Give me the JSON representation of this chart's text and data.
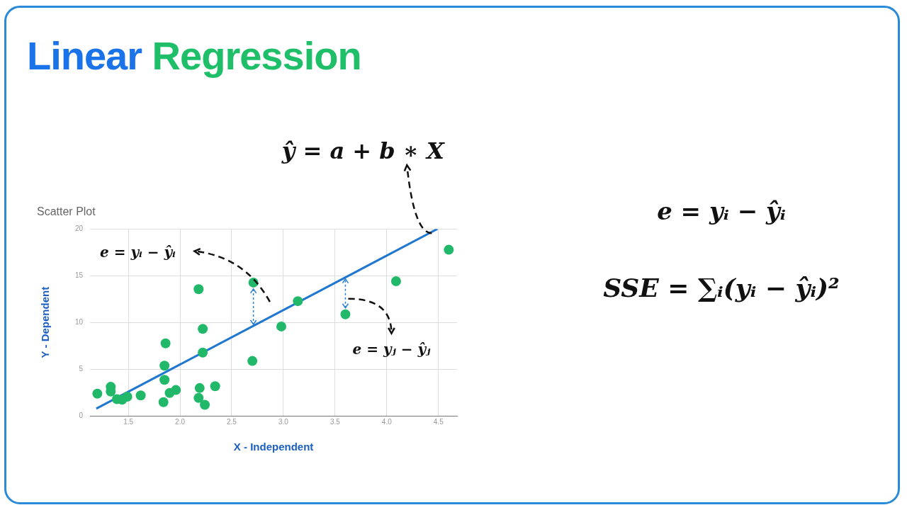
{
  "chart_data": {
    "type": "scatter",
    "title": "Linear Regression",
    "subtitle": "Scatter Plot",
    "xlabel": "X - Independent",
    "ylabel": "Y - Dependent",
    "xlim": [
      1.13,
      4.68
    ],
    "xticks": [
      {
        "value": 1.5,
        "label": "1.5"
      },
      {
        "value": 2,
        "label": "2.0"
      },
      {
        "value": 2.5,
        "label": "2.5"
      },
      {
        "value": 3,
        "label": "3.0"
      },
      {
        "value": 3.5,
        "label": "3.5"
      },
      {
        "value": 4,
        "label": "4.0"
      },
      {
        "value": 4.5,
        "label": "4.5"
      }
    ],
    "ylim": [
      0,
      20
    ],
    "yticks": [
      0,
      5,
      10,
      15,
      20
    ],
    "grid": true,
    "marker": "circle",
    "series": [
      {
        "color": "#21b869",
        "x": [
          1.2,
          1.33,
          1.33,
          1.39,
          1.44,
          1.49,
          1.62,
          1.84,
          1.85,
          1.85,
          1.86,
          1.9,
          1.96,
          2.18,
          2.19,
          2.18,
          2.24,
          2.22,
          2.22,
          2.34,
          2.71,
          2.7,
          2.98,
          3.14,
          3.6,
          4.09,
          4.6
        ],
        "values": [
          2.37,
          3.1,
          2.6,
          1.78,
          1.73,
          2.05,
          2.18,
          1.46,
          3.85,
          5.36,
          7.75,
          2.44,
          2.76,
          13.55,
          2.97,
          1.91,
          1.17,
          9.3,
          6.77,
          3.16,
          14.26,
          5.87,
          9.56,
          12.27,
          10.86,
          14.4,
          17.77
        ]
      },
      {
        "type": "line",
        "color": "#1f77d0",
        "marker": "none",
        "x": [
          1.19,
          4.49
        ],
        "values": [
          0.77,
          20
        ]
      }
    ],
    "annotations": [
      {
        "text": "ŷ = a + b ∗ X",
        "x": 4.49,
        "y": 20
      },
      "e = yᵢ − ŷᵢ",
      {
        "text": "e = yⱼ − ŷⱼ",
        "x": 3.6,
        "y": 10.86
      },
      "e = yᵢ − ŷᵢ",
      "SSE = ∑ᵢ(yᵢ − ŷᵢ)²"
    ]
  }
}
